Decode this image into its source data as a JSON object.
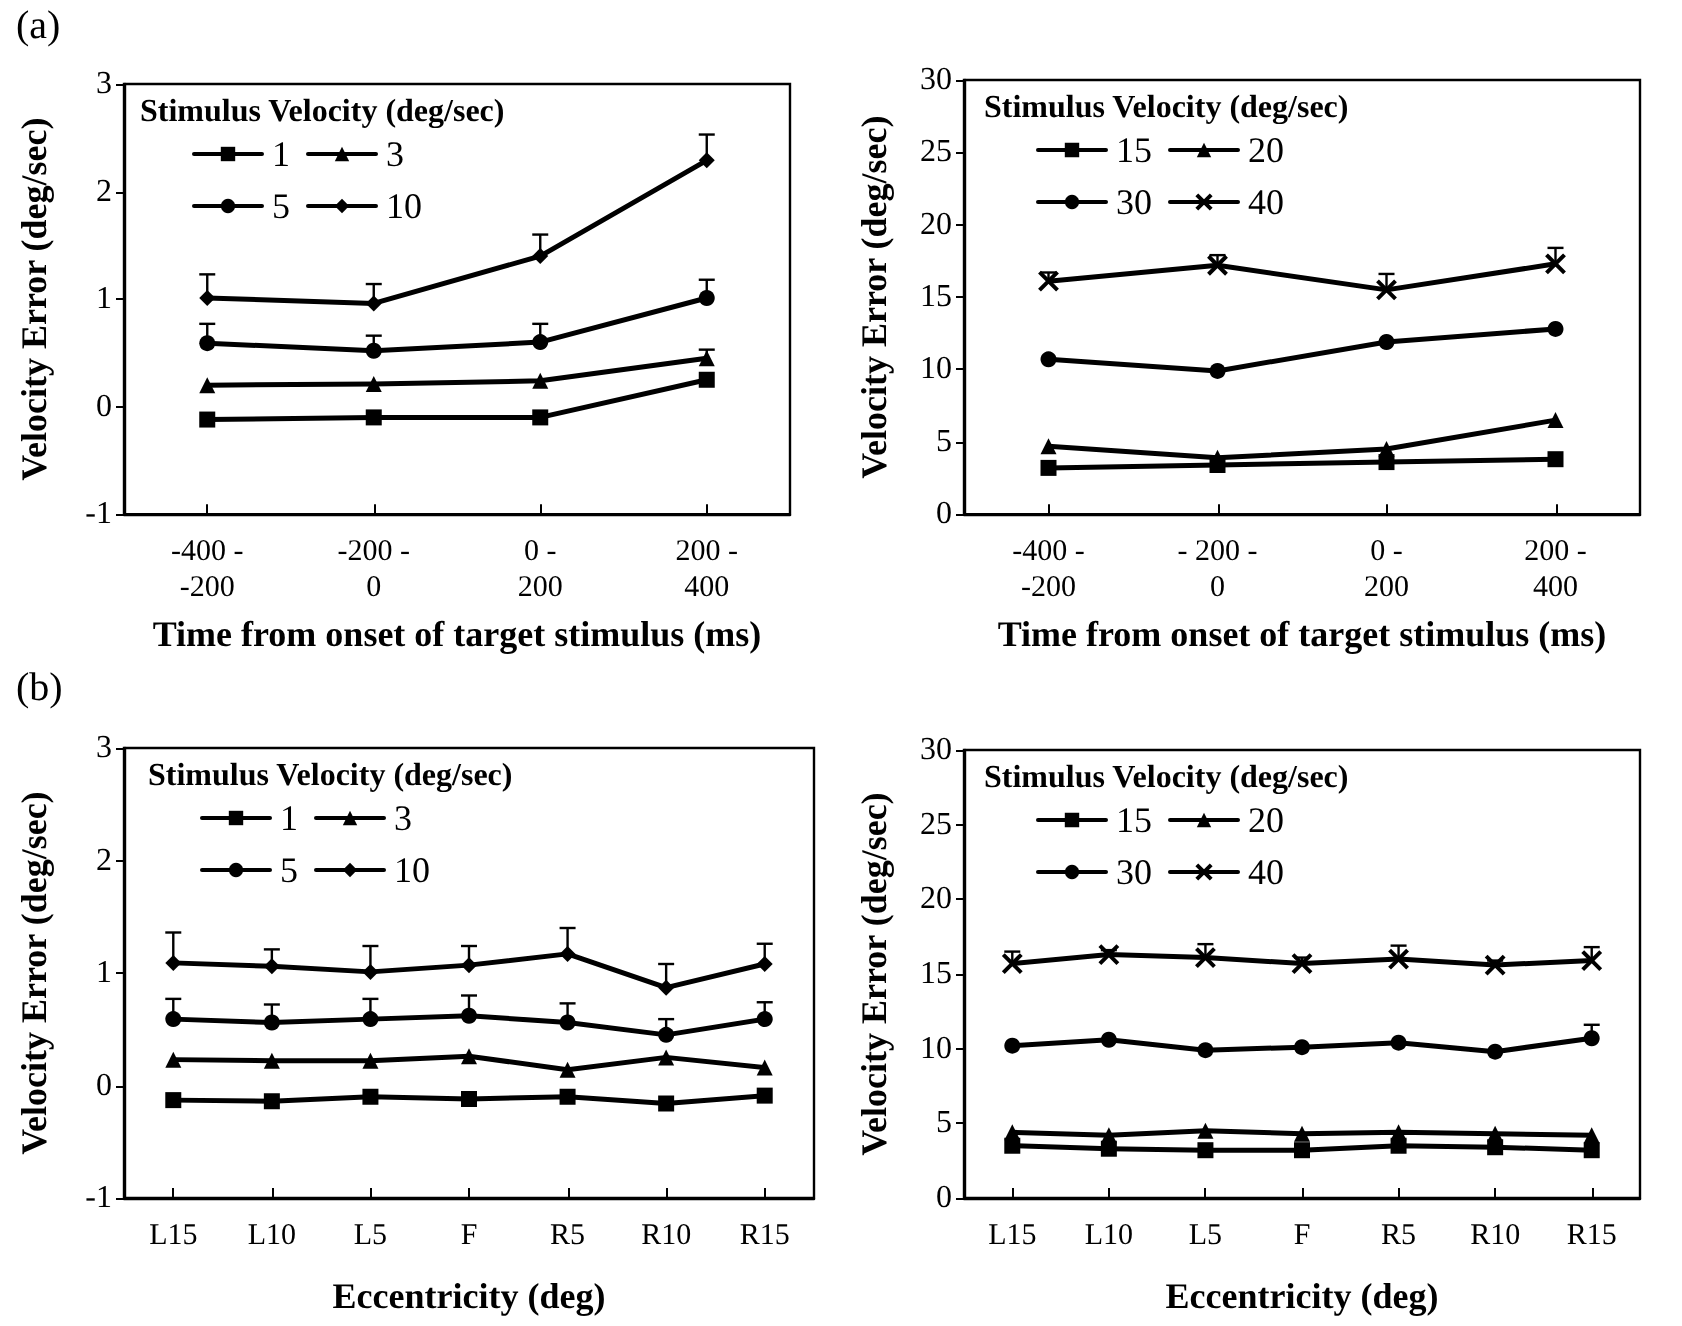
{
  "chart_data": [
    {
      "type": "line",
      "xlabel": "Time from onset of target stimulus (ms)",
      "ylabel": "Velocity Error (deg/sec)",
      "legend_title": "Stimulus Velocity (deg/sec)",
      "annotations": [
        "(a)"
      ],
      "categories": [
        "-400 -\n-200",
        "-200 -\n0",
        "0 -\n200",
        "200 -\n400"
      ],
      "ylim": [
        -1,
        3
      ],
      "yticks": [
        -1,
        0,
        1,
        2,
        3
      ],
      "grid": false,
      "legend": "top left",
      "series": [
        {
          "name": "1",
          "color": "#000000",
          "marker": "square",
          "values": [
            -0.12,
            -0.1,
            -0.1,
            0.25
          ]
        },
        {
          "name": "3",
          "color": "#000000",
          "marker": "triangle",
          "values": [
            0.2,
            0.21,
            0.24,
            0.45
          ],
          "errors": [
            null,
            null,
            null,
            [
              0.45,
              0.53
            ]
          ]
        },
        {
          "name": "5",
          "color": "#000000",
          "marker": "circle",
          "values": [
            0.59,
            0.52,
            0.6,
            1.01
          ],
          "errors": [
            [
              0.59,
              0.77
            ],
            [
              0.52,
              0.66
            ],
            [
              0.6,
              0.77
            ],
            [
              1.01,
              1.18
            ]
          ]
        },
        {
          "name": "10",
          "color": "#000000",
          "marker": "diamond",
          "values": [
            1.01,
            0.96,
            1.4,
            2.29
          ],
          "errors": [
            [
              1.01,
              1.23
            ],
            [
              0.96,
              1.14
            ],
            [
              1.4,
              1.6
            ],
            [
              2.29,
              2.53
            ]
          ]
        }
      ]
    },
    {
      "type": "line",
      "xlabel": "Time from onset of target stimulus (ms)",
      "ylabel": "Velocity Error (deg/sec)",
      "legend_title": "Stimulus Velocity (deg/sec)",
      "categories": [
        "-400 -\n-200",
        "- 200 -\n0",
        "0 -\n200",
        "200 -\n400"
      ],
      "ylim": [
        0,
        30
      ],
      "yticks": [
        0,
        5,
        10,
        15,
        20,
        25,
        30
      ],
      "grid": false,
      "legend": "top left",
      "series": [
        {
          "name": "15",
          "color": "#000000",
          "marker": "square",
          "values": [
            3.2,
            3.4,
            3.6,
            3.8
          ]
        },
        {
          "name": "20",
          "color": "#000000",
          "marker": "triangle",
          "values": [
            4.7,
            3.9,
            4.5,
            6.5
          ]
        },
        {
          "name": "30",
          "color": "#000000",
          "marker": "circle",
          "values": [
            10.7,
            9.9,
            11.9,
            12.8
          ]
        },
        {
          "name": "40",
          "color": "#000000",
          "marker": "cross",
          "values": [
            16.1,
            17.2,
            15.5,
            17.3
          ],
          "errors": [
            [
              16.1,
              16.7
            ],
            [
              17.2,
              17.9
            ],
            [
              15.5,
              16.6
            ],
            [
              17.3,
              18.4
            ]
          ]
        }
      ]
    },
    {
      "type": "line",
      "xlabel": "Eccentricity (deg)",
      "ylabel": "Velocity Error (deg/sec)",
      "legend_title": "Stimulus Velocity (deg/sec)",
      "annotations": [
        "(b)"
      ],
      "categories": [
        "L15",
        "L10",
        "L5",
        "F",
        "R5",
        "R10",
        "R15"
      ],
      "ylim": [
        -1,
        3
      ],
      "yticks": [
        -1,
        0,
        1,
        2,
        3
      ],
      "grid": false,
      "legend": "top left",
      "series": [
        {
          "name": "1",
          "color": "#000000",
          "marker": "square",
          "values": [
            -0.13,
            -0.14,
            -0.1,
            -0.12,
            -0.1,
            -0.16,
            -0.09
          ]
        },
        {
          "name": "3",
          "color": "#000000",
          "marker": "triangle",
          "values": [
            0.23,
            0.22,
            0.22,
            0.26,
            0.14,
            0.25,
            0.16
          ]
        },
        {
          "name": "5",
          "color": "#000000",
          "marker": "circle",
          "values": [
            0.59,
            0.56,
            0.59,
            0.62,
            0.56,
            0.45,
            0.59
          ],
          "errors": [
            [
              0.59,
              0.77
            ],
            [
              0.56,
              0.72
            ],
            [
              0.59,
              0.77
            ],
            [
              0.62,
              0.8
            ],
            [
              0.56,
              0.73
            ],
            [
              0.45,
              0.59
            ],
            [
              0.59,
              0.74
            ]
          ]
        },
        {
          "name": "10",
          "color": "#000000",
          "marker": "diamond",
          "values": [
            1.09,
            1.06,
            1.01,
            1.07,
            1.17,
            0.87,
            1.08
          ],
          "errors": [
            [
              1.09,
              1.36
            ],
            [
              1.06,
              1.21
            ],
            [
              1.01,
              1.24
            ],
            [
              1.07,
              1.24
            ],
            [
              1.17,
              1.4
            ],
            [
              0.87,
              1.08
            ],
            [
              1.08,
              1.26
            ]
          ]
        }
      ]
    },
    {
      "type": "line",
      "xlabel": "Eccentricity (deg)",
      "ylabel": "Velocity Error (deg/sec)",
      "legend_title": "Stimulus Velocity (deg/sec)",
      "categories": [
        "L15",
        "L10",
        "L5",
        "F",
        "R5",
        "R10",
        "R15"
      ],
      "ylim": [
        0,
        30
      ],
      "yticks": [
        0,
        5,
        10,
        15,
        20,
        25,
        30
      ],
      "grid": false,
      "legend": "top left",
      "series": [
        {
          "name": "15",
          "color": "#000000",
          "marker": "square",
          "values": [
            3.5,
            3.3,
            3.2,
            3.2,
            3.5,
            3.4,
            3.2
          ]
        },
        {
          "name": "20",
          "color": "#000000",
          "marker": "triangle",
          "values": [
            4.4,
            4.2,
            4.5,
            4.3,
            4.4,
            4.3,
            4.2
          ]
        },
        {
          "name": "30",
          "color": "#000000",
          "marker": "circle",
          "values": [
            10.2,
            10.6,
            9.9,
            10.1,
            10.4,
            9.8,
            10.7
          ],
          "errors": [
            null,
            null,
            null,
            null,
            null,
            null,
            [
              10.7,
              11.6
            ]
          ]
        },
        {
          "name": "40",
          "color": "#000000",
          "marker": "cross",
          "values": [
            15.7,
            16.3,
            16.1,
            15.7,
            16.0,
            15.6,
            15.9
          ],
          "errors": [
            [
              15.7,
              16.5
            ],
            [
              16.3,
              16.6
            ],
            [
              16.1,
              17.0
            ],
            [
              15.7,
              16.1
            ],
            [
              16.0,
              16.9
            ],
            [
              15.6,
              15.9
            ],
            [
              15.9,
              16.8
            ]
          ]
        }
      ]
    }
  ]
}
